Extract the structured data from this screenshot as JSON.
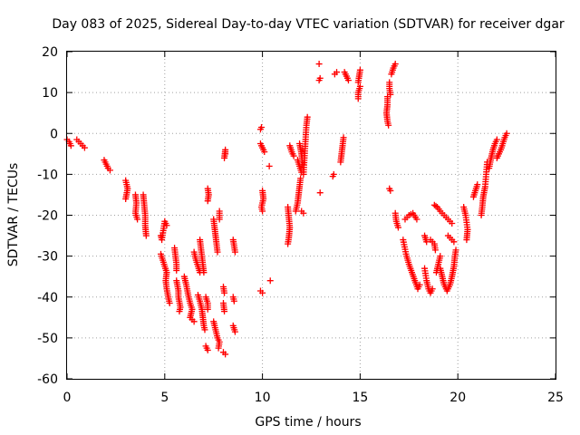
{
  "chart_data": {
    "type": "scatter",
    "title": "Day 083 of 2025, Sidereal Day-to-day VTEC variation (SDTVAR) for receiver dgar",
    "xlabel": "GPS time / hours",
    "ylabel": "SDTVAR / TECUs",
    "xlim": [
      0,
      25
    ],
    "ylim": [
      -60,
      20
    ],
    "xticks": [
      "0",
      "5",
      "10",
      "15",
      "20",
      "25"
    ],
    "yticks": [
      "20",
      "10",
      "0",
      "-10",
      "-20",
      "-30",
      "-40",
      "-50",
      "-60"
    ],
    "xtick_values": [
      0,
      5,
      10,
      15,
      20,
      25
    ],
    "ytick_values": [
      20,
      10,
      0,
      -10,
      -20,
      -30,
      -40,
      -50,
      -60
    ],
    "grid": true,
    "marker": "+",
    "marker_color": "#ff0000",
    "series": [
      {
        "name": "SDTVAR",
        "tracks": [
          [
            [
              0.0,
              -1.5
            ],
            [
              0.1,
              -2.0
            ],
            [
              0.15,
              -2.5
            ],
            [
              0.2,
              -3.0
            ]
          ],
          [
            [
              0.5,
              -1.5
            ],
            [
              0.6,
              -2.0
            ],
            [
              0.7,
              -2.5
            ],
            [
              0.8,
              -3.0
            ],
            [
              0.9,
              -3.5
            ]
          ],
          [
            [
              1.9,
              -6.5
            ],
            [
              2.0,
              -7.5
            ],
            [
              2.1,
              -8.5
            ],
            [
              2.2,
              -9.0
            ]
          ],
          [
            [
              3.0,
              -11.5
            ],
            [
              3.05,
              -12.5
            ],
            [
              3.1,
              -13.5
            ],
            [
              3.0,
              -16.0
            ]
          ],
          [
            [
              3.5,
              -15.0
            ],
            [
              3.55,
              -17.0
            ],
            [
              3.5,
              -19.5
            ],
            [
              3.6,
              -21.0
            ]
          ],
          [
            [
              3.9,
              -15.0
            ],
            [
              3.95,
              -17.5
            ],
            [
              4.0,
              -20.0
            ],
            [
              4.0,
              -22.5
            ],
            [
              4.05,
              -25.0
            ]
          ],
          [
            [
              4.8,
              -25.0
            ],
            [
              4.85,
              -26.0
            ],
            [
              5.0,
              -21.5
            ],
            [
              5.1,
              -22.5
            ]
          ],
          [
            [
              4.8,
              -29.5
            ],
            [
              4.9,
              -31.0
            ],
            [
              5.0,
              -32.5
            ],
            [
              5.1,
              -34.0
            ],
            [
              5.05,
              -36.0
            ],
            [
              5.1,
              -38.0
            ],
            [
              5.2,
              -40.5
            ],
            [
              5.25,
              -41.5
            ]
          ],
          [
            [
              5.5,
              -28.0
            ],
            [
              5.55,
              -30.0
            ],
            [
              5.6,
              -32.0
            ],
            [
              5.6,
              -33.5
            ]
          ],
          [
            [
              5.6,
              -36.0
            ],
            [
              5.7,
              -38.5
            ],
            [
              5.7,
              -40.0
            ],
            [
              5.8,
              -42.5
            ],
            [
              5.75,
              -43.5
            ]
          ],
          [
            [
              6.0,
              -35.0
            ],
            [
              6.1,
              -37.0
            ],
            [
              6.2,
              -39.5
            ],
            [
              6.3,
              -41.5
            ],
            [
              6.4,
              -43.0
            ],
            [
              6.3,
              -45.0
            ],
            [
              6.5,
              -46.0
            ]
          ],
          [
            [
              6.5,
              -29.0
            ],
            [
              6.6,
              -31.0
            ],
            [
              6.7,
              -32.5
            ],
            [
              6.8,
              -34.0
            ]
          ],
          [
            [
              6.8,
              -26.0
            ],
            [
              6.85,
              -28.0
            ],
            [
              6.9,
              -30.0
            ],
            [
              6.95,
              -32.0
            ],
            [
              7.0,
              -34.0
            ]
          ],
          [
            [
              6.7,
              -39.5
            ],
            [
              6.8,
              -41.0
            ],
            [
              6.9,
              -43.0
            ],
            [
              6.95,
              -45.0
            ],
            [
              7.0,
              -47.0
            ],
            [
              7.05,
              -48.0
            ]
          ],
          [
            [
              7.1,
              -40.0
            ],
            [
              7.2,
              -41.5
            ],
            [
              7.2,
              -43.0
            ]
          ],
          [
            [
              7.2,
              -13.5
            ],
            [
              7.25,
              -15.0
            ],
            [
              7.2,
              -16.5
            ]
          ],
          [
            [
              7.1,
              -52.0
            ],
            [
              7.2,
              -53.0
            ]
          ],
          [
            [
              7.5,
              -46.0
            ],
            [
              7.6,
              -48.0
            ],
            [
              7.7,
              -50.0
            ],
            [
              7.8,
              -51.0
            ],
            [
              7.75,
              -52.5
            ]
          ],
          [
            [
              7.5,
              -21.0
            ],
            [
              7.55,
              -23.0
            ],
            [
              7.6,
              -25.0
            ],
            [
              7.65,
              -27.0
            ],
            [
              7.7,
              -29.0
            ]
          ],
          [
            [
              7.8,
              -19.0
            ],
            [
              7.8,
              -21.0
            ]
          ],
          [
            [
              8.0,
              -37.5
            ],
            [
              8.05,
              -39.0
            ]
          ],
          [
            [
              8.1,
              -5.0
            ],
            [
              8.1,
              -4.0
            ],
            [
              8.05,
              -6.0
            ]
          ],
          [
            [
              8.0,
              -41.5
            ],
            [
              8.05,
              -43.5
            ]
          ],
          [
            [
              8.1,
              -54.0
            ],
            [
              8.0,
              -53.5
            ]
          ],
          [
            [
              8.5,
              -26.0
            ],
            [
              8.55,
              -27.5
            ],
            [
              8.6,
              -29.0
            ]
          ],
          [
            [
              8.5,
              -40.0
            ],
            [
              8.55,
              -41.0
            ]
          ],
          [
            [
              8.5,
              -47.0
            ],
            [
              8.6,
              -48.5
            ]
          ],
          [
            [
              9.9,
              1.0
            ],
            [
              9.95,
              1.5
            ]
          ],
          [
            [
              9.9,
              -2.5
            ],
            [
              10.0,
              -3.5
            ],
            [
              10.1,
              -4.5
            ]
          ],
          [
            [
              9.9,
              -38.5
            ],
            [
              10.0,
              -39.0
            ]
          ],
          [
            [
              10.0,
              -14.0
            ],
            [
              10.05,
              -16.0
            ],
            [
              9.95,
              -18.0
            ],
            [
              10.0,
              -19.0
            ]
          ],
          [
            [
              10.35,
              -8.0
            ]
          ],
          [
            [
              10.4,
              -36.0
            ]
          ],
          [
            [
              11.3,
              -18.0
            ],
            [
              11.35,
              -20.5
            ],
            [
              11.4,
              -23.0
            ],
            [
              11.35,
              -25.5
            ],
            [
              11.3,
              -27.0
            ]
          ],
          [
            [
              11.4,
              -3.0
            ],
            [
              11.5,
              -4.5
            ],
            [
              11.6,
              -5.5
            ]
          ],
          [
            [
              11.7,
              -19.0
            ],
            [
              11.8,
              -17.0
            ],
            [
              11.85,
              -15.0
            ],
            [
              11.9,
              -13.0
            ],
            [
              11.95,
              -11.0
            ]
          ],
          [
            [
              11.8,
              -6.5
            ],
            [
              11.9,
              -8.0
            ],
            [
              12.0,
              -9.5
            ]
          ],
          [
            [
              11.9,
              -2.5
            ],
            [
              12.0,
              -5.0
            ],
            [
              12.05,
              -7.5
            ]
          ],
          [
            [
              12.0,
              -19.0
            ],
            [
              12.1,
              -19.5
            ]
          ],
          [
            [
              12.1,
              -10.0
            ],
            [
              12.15,
              -6.0
            ],
            [
              12.2,
              -2.0
            ],
            [
              12.25,
              2.0
            ],
            [
              12.3,
              4.0
            ]
          ],
          [
            [
              12.9,
              13.0
            ],
            [
              12.95,
              13.5
            ]
          ],
          [
            [
              12.9,
              17.0
            ]
          ],
          [
            [
              12.95,
              -14.5
            ]
          ],
          [
            [
              13.6,
              -10.5
            ],
            [
              13.65,
              -10.0
            ]
          ],
          [
            [
              13.7,
              14.5
            ],
            [
              13.8,
              15.0
            ]
          ],
          [
            [
              14.0,
              -7.0
            ],
            [
              14.05,
              -5.0
            ],
            [
              14.1,
              -3.0
            ],
            [
              14.15,
              -1.0
            ]
          ],
          [
            [
              14.2,
              15.0
            ],
            [
              14.3,
              14.0
            ],
            [
              14.4,
              13.0
            ]
          ],
          [
            [
              14.9,
              8.5
            ],
            [
              14.9,
              10.0
            ],
            [
              15.0,
              11.5
            ]
          ],
          [
            [
              14.9,
              12.5
            ],
            [
              14.95,
              14.0
            ],
            [
              15.0,
              15.5
            ]
          ],
          [
            [
              16.4,
              9.0
            ],
            [
              16.4,
              7.0
            ],
            [
              16.35,
              5.0
            ],
            [
              16.4,
              3.0
            ],
            [
              16.45,
              2.0
            ]
          ],
          [
            [
              16.5,
              12.5
            ],
            [
              16.5,
              11.0
            ],
            [
              16.55,
              9.5
            ]
          ],
          [
            [
              16.5,
              -13.5
            ],
            [
              16.55,
              -14.0
            ]
          ],
          [
            [
              16.6,
              14.5
            ],
            [
              16.7,
              16.0
            ],
            [
              16.8,
              17.0
            ]
          ],
          [
            [
              16.8,
              -19.5
            ],
            [
              16.85,
              -21.5
            ],
            [
              16.95,
              -23.0
            ]
          ],
          [
            [
              17.3,
              -21.0
            ],
            [
              17.5,
              -20.0
            ],
            [
              17.7,
              -19.5
            ],
            [
              17.9,
              -21.0
            ]
          ],
          [
            [
              17.2,
              -26.0
            ],
            [
              17.35,
              -29.5
            ],
            [
              17.5,
              -32.0
            ],
            [
              17.65,
              -34.0
            ],
            [
              17.8,
              -36.0
            ],
            [
              17.95,
              -38.0
            ],
            [
              18.05,
              -37.0
            ]
          ],
          [
            [
              18.3,
              -33.0
            ],
            [
              18.4,
              -36.0
            ],
            [
              18.5,
              -38.0
            ],
            [
              18.6,
              -39.0
            ],
            [
              18.7,
              -38.0
            ]
          ],
          [
            [
              18.3,
              -25.0
            ],
            [
              18.4,
              -26.5
            ]
          ],
          [
            [
              18.6,
              -26.0
            ],
            [
              18.8,
              -27.0
            ],
            [
              18.85,
              -28.5
            ]
          ],
          [
            [
              18.8,
              -17.5
            ],
            [
              18.95,
              -18.0
            ],
            [
              19.1,
              -19.0
            ],
            [
              19.3,
              -20.0
            ],
            [
              19.5,
              -21.0
            ],
            [
              19.7,
              -22.0
            ]
          ],
          [
            [
              18.9,
              -34.0
            ],
            [
              19.0,
              -32.0
            ],
            [
              19.1,
              -30.0
            ]
          ],
          [
            [
              19.1,
              -33.0
            ],
            [
              19.2,
              -35.0
            ],
            [
              19.3,
              -37.0
            ],
            [
              19.45,
              -38.5
            ],
            [
              19.6,
              -37.0
            ],
            [
              19.7,
              -35.0
            ],
            [
              19.8,
              -32.5
            ],
            [
              19.85,
              -30.0
            ],
            [
              19.9,
              -28.5
            ]
          ],
          [
            [
              19.5,
              -25.0
            ],
            [
              19.7,
              -26.0
            ],
            [
              19.8,
              -26.5
            ]
          ],
          [
            [
              20.3,
              -18.0
            ],
            [
              20.4,
              -20.0
            ],
            [
              20.5,
              -23.5
            ],
            [
              20.45,
              -26.0
            ]
          ],
          [
            [
              20.8,
              -15.5
            ],
            [
              20.9,
              -14.0
            ],
            [
              21.0,
              -12.5
            ]
          ],
          [
            [
              21.2,
              -20.0
            ],
            [
              21.25,
              -18.0
            ],
            [
              21.3,
              -15.5
            ],
            [
              21.4,
              -13.0
            ],
            [
              21.45,
              -10.0
            ],
            [
              21.5,
              -7.0
            ]
          ],
          [
            [
              21.6,
              -8.5
            ],
            [
              21.7,
              -6.0
            ],
            [
              21.8,
              -4.0
            ],
            [
              21.9,
              -2.5
            ],
            [
              22.0,
              -1.5
            ]
          ],
          [
            [
              22.0,
              -6.0
            ],
            [
              22.1,
              -5.0
            ],
            [
              22.2,
              -4.0
            ],
            [
              22.3,
              -2.5
            ],
            [
              22.4,
              -1.0
            ],
            [
              22.5,
              0.0
            ]
          ]
        ]
      }
    ]
  }
}
